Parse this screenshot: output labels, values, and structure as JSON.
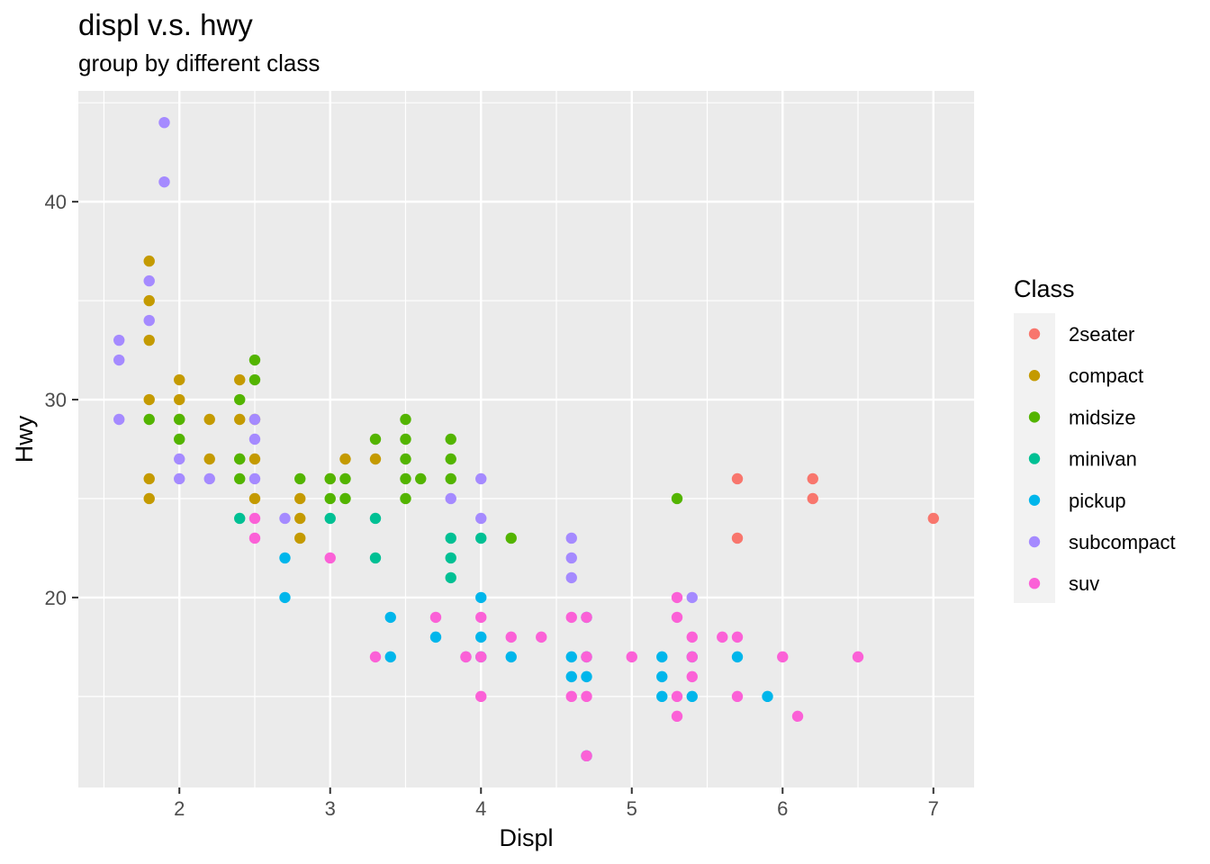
{
  "chart_data": {
    "type": "scatter",
    "title": "displ v.s. hwy",
    "subtitle": "group by different class",
    "xlabel": "Displ",
    "ylabel": "Hwy",
    "xlim": [
      1.33,
      7.27
    ],
    "ylim": [
      10.4,
      45.6
    ],
    "xticks": [
      2,
      3,
      4,
      5,
      6,
      7
    ],
    "yticks": [
      20,
      30,
      40
    ],
    "grid": true,
    "legend": {
      "title": "Class",
      "position": "right"
    },
    "series": [
      {
        "name": "2seater",
        "color": "#F8766D",
        "points": [
          [
            5.7,
            26
          ],
          [
            5.7,
            23
          ],
          [
            6.2,
            26
          ],
          [
            6.2,
            25
          ],
          [
            7.0,
            24
          ]
        ]
      },
      {
        "name": "compact",
        "color": "#C49A00",
        "points": [
          [
            1.8,
            37
          ],
          [
            1.8,
            35
          ],
          [
            1.8,
            33
          ],
          [
            1.8,
            30
          ],
          [
            1.8,
            26
          ],
          [
            1.8,
            25
          ],
          [
            2.0,
            31
          ],
          [
            2.0,
            30
          ],
          [
            2.0,
            29
          ],
          [
            2.2,
            29
          ],
          [
            2.2,
            27
          ],
          [
            2.4,
            31
          ],
          [
            2.4,
            29
          ],
          [
            2.4,
            27
          ],
          [
            2.5,
            29
          ],
          [
            2.5,
            27
          ],
          [
            2.5,
            25
          ],
          [
            2.8,
            25
          ],
          [
            2.8,
            24
          ],
          [
            2.8,
            23
          ],
          [
            3.0,
            26
          ],
          [
            3.1,
            27
          ],
          [
            3.3,
            27
          ]
        ]
      },
      {
        "name": "midsize",
        "color": "#53B400",
        "points": [
          [
            1.8,
            29
          ],
          [
            2.0,
            29
          ],
          [
            2.0,
            28
          ],
          [
            2.4,
            30
          ],
          [
            2.4,
            27
          ],
          [
            2.4,
            26
          ],
          [
            2.5,
            32
          ],
          [
            2.5,
            31
          ],
          [
            2.8,
            26
          ],
          [
            3.0,
            26
          ],
          [
            3.0,
            25
          ],
          [
            3.1,
            26
          ],
          [
            3.1,
            25
          ],
          [
            3.3,
            28
          ],
          [
            3.5,
            29
          ],
          [
            3.5,
            28
          ],
          [
            3.5,
            27
          ],
          [
            3.5,
            26
          ],
          [
            3.5,
            25
          ],
          [
            3.6,
            26
          ],
          [
            3.8,
            28
          ],
          [
            3.8,
            27
          ],
          [
            3.8,
            26
          ],
          [
            4.2,
            23
          ],
          [
            5.3,
            25
          ]
        ]
      },
      {
        "name": "minivan",
        "color": "#00C094",
        "points": [
          [
            2.4,
            24
          ],
          [
            3.0,
            24
          ],
          [
            3.3,
            24
          ],
          [
            3.3,
            22
          ],
          [
            3.8,
            23
          ],
          [
            3.8,
            22
          ],
          [
            3.8,
            21
          ],
          [
            4.0,
            23
          ]
        ]
      },
      {
        "name": "pickup",
        "color": "#00B6EB",
        "points": [
          [
            2.7,
            22
          ],
          [
            2.7,
            20
          ],
          [
            3.4,
            19
          ],
          [
            3.4,
            17
          ],
          [
            3.7,
            18
          ],
          [
            4.0,
            20
          ],
          [
            4.0,
            18
          ],
          [
            4.0,
            17
          ],
          [
            4.2,
            17
          ],
          [
            4.6,
            17
          ],
          [
            4.6,
            16
          ],
          [
            4.7,
            19
          ],
          [
            4.7,
            17
          ],
          [
            4.7,
            16
          ],
          [
            4.7,
            12
          ],
          [
            5.2,
            17
          ],
          [
            5.2,
            16
          ],
          [
            5.2,
            15
          ],
          [
            5.4,
            17
          ],
          [
            5.4,
            15
          ],
          [
            5.7,
            17
          ],
          [
            5.9,
            15
          ]
        ]
      },
      {
        "name": "subcompact",
        "color": "#A58AFF",
        "points": [
          [
            1.6,
            33
          ],
          [
            1.6,
            32
          ],
          [
            1.6,
            29
          ],
          [
            1.8,
            36
          ],
          [
            1.8,
            34
          ],
          [
            1.9,
            44
          ],
          [
            1.9,
            41
          ],
          [
            2.0,
            27
          ],
          [
            2.0,
            26
          ],
          [
            2.2,
            26
          ],
          [
            2.5,
            29
          ],
          [
            2.5,
            28
          ],
          [
            2.5,
            26
          ],
          [
            2.7,
            24
          ],
          [
            3.8,
            25
          ],
          [
            3.9,
            17
          ],
          [
            4.0,
            26
          ],
          [
            4.0,
            24
          ],
          [
            4.6,
            23
          ],
          [
            4.6,
            22
          ],
          [
            4.6,
            21
          ],
          [
            5.4,
            20
          ]
        ]
      },
      {
        "name": "suv",
        "color": "#FB61D7",
        "points": [
          [
            2.5,
            24
          ],
          [
            2.5,
            23
          ],
          [
            3.0,
            22
          ],
          [
            3.3,
            17
          ],
          [
            3.7,
            19
          ],
          [
            3.9,
            17
          ],
          [
            4.0,
            19
          ],
          [
            4.0,
            17
          ],
          [
            4.0,
            15
          ],
          [
            4.2,
            18
          ],
          [
            4.4,
            18
          ],
          [
            4.6,
            19
          ],
          [
            4.6,
            15
          ],
          [
            4.7,
            19
          ],
          [
            4.7,
            17
          ],
          [
            4.7,
            15
          ],
          [
            4.7,
            12
          ],
          [
            5.0,
            17
          ],
          [
            5.3,
            20
          ],
          [
            5.3,
            19
          ],
          [
            5.3,
            15
          ],
          [
            5.3,
            14
          ],
          [
            5.4,
            18
          ],
          [
            5.4,
            17
          ],
          [
            5.4,
            16
          ],
          [
            5.6,
            18
          ],
          [
            5.7,
            18
          ],
          [
            5.7,
            15
          ],
          [
            6.0,
            17
          ],
          [
            6.1,
            14
          ],
          [
            6.5,
            17
          ]
        ]
      }
    ]
  }
}
